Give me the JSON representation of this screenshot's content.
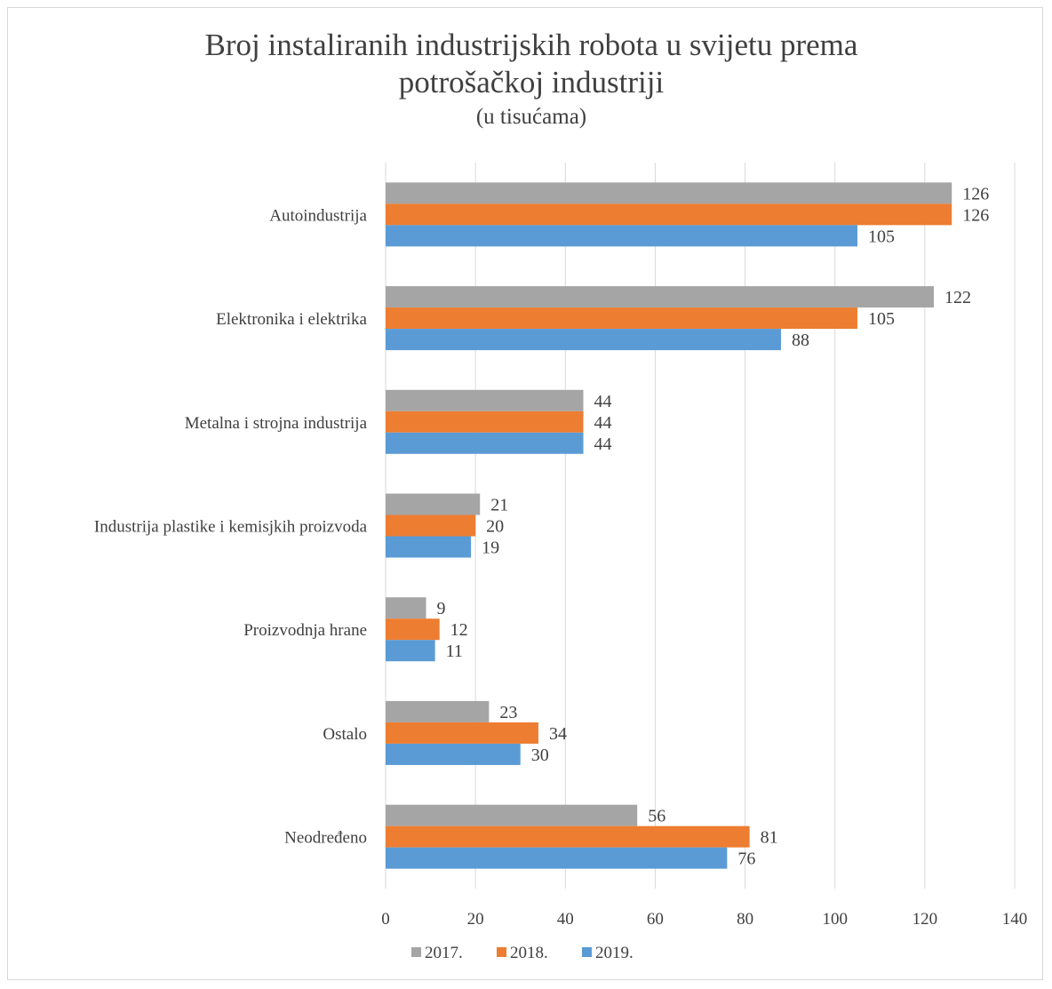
{
  "chart_data": {
    "type": "bar",
    "orientation": "horizontal",
    "title": "Broj instaliranih industrijskih robota u svijetu prema potrošačkoj industriji",
    "title_line1": "Broj instaliranih industrijskih robota u svijetu prema",
    "title_line2": "potrošačkoj industriji",
    "subtitle": "(u tisućama)",
    "categories": [
      "Autoindustrija",
      "Elektronika i elektrika",
      "Metalna i strojna industrija",
      "Industrija plastike i kemisjkih proizvoda",
      "Proizvodnja hrane",
      "Ostalo",
      "Neodređeno"
    ],
    "series": [
      {
        "name": "2017.",
        "color": "#a5a5a5",
        "values": [
          126,
          122,
          44,
          21,
          9,
          23,
          56
        ]
      },
      {
        "name": "2018.",
        "color": "#ed7d31",
        "values": [
          126,
          105,
          44,
          20,
          12,
          34,
          81
        ]
      },
      {
        "name": "2019.",
        "color": "#5b9bd5",
        "values": [
          105,
          88,
          44,
          19,
          11,
          30,
          76
        ]
      }
    ],
    "xlim": [
      0,
      140
    ],
    "xticks": [
      0,
      20,
      40,
      60,
      80,
      100,
      120,
      140
    ],
    "grid": "vertical",
    "legend": "bottom",
    "gridline_color": "#d9d9d9"
  }
}
